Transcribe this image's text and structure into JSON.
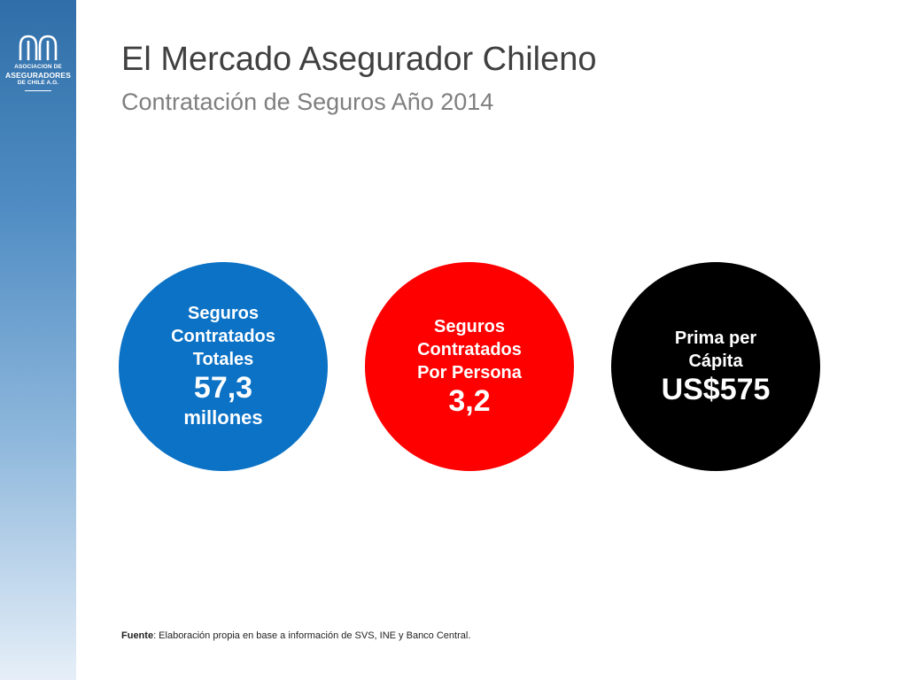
{
  "logo": {
    "line1": "ASOCIACION DE",
    "line2": "ASEGURADORES",
    "line3": "DE CHILE A.G."
  },
  "header": {
    "title": "El Mercado Asegurador Chileno",
    "subtitle": "Contratación de Seguros Año 2014"
  },
  "circles": [
    {
      "label_lines": [
        "Seguros",
        "Contratados",
        "Totales"
      ],
      "value": "57,3",
      "unit": "millones",
      "color": "#0b72c6"
    },
    {
      "label_lines": [
        "Seguros",
        "Contratados",
        "Por Persona"
      ],
      "value": "3,2",
      "color": "#ff0000"
    },
    {
      "label_lines": [
        "Prima per",
        "Cápita"
      ],
      "value": "US$575",
      "color": "#000000"
    }
  ],
  "footer": {
    "source_label": "Fuente",
    "source_text": ": Elaboración propia en base a información de SVS, INE y Banco Central."
  }
}
